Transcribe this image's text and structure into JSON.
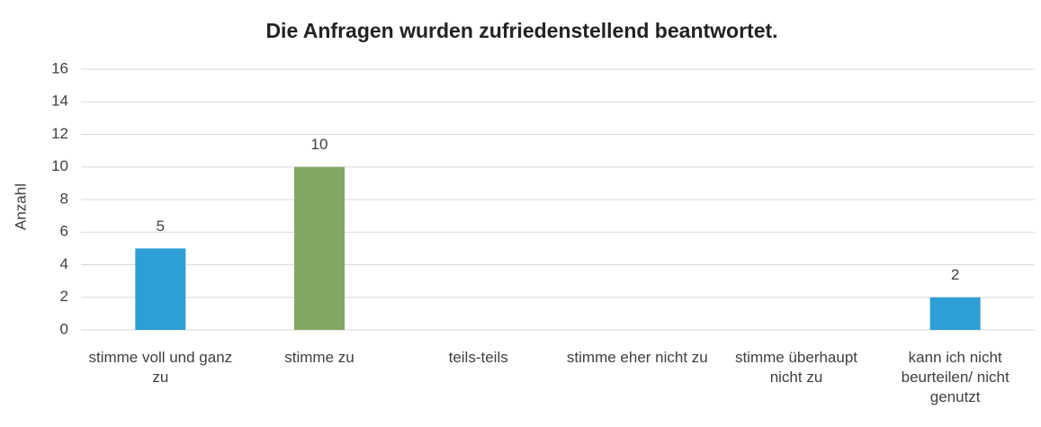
{
  "chart_data": {
    "type": "bar",
    "title": "Die Anfragen wurden zufriedenstellend beantwortet.",
    "y_label": "Anzahl",
    "categories": [
      "stimme voll und ganz zu",
      "stimme zu",
      "teils-teils",
      "stimme eher nicht zu",
      "stimme überhaupt nicht zu",
      "kann ich nicht beurteilen/ nicht genutzt"
    ],
    "values": [
      5,
      10,
      0,
      0,
      0,
      2
    ],
    "value_labels": [
      "5",
      "10",
      null,
      null,
      null,
      "2"
    ],
    "colors": [
      "#2e9fd6",
      "#84a665",
      "#2e9fd6",
      "#2e9fd6",
      "#2e9fd6",
      "#2e9fd6"
    ],
    "ylim": [
      0,
      16
    ],
    "yticks": [
      0,
      2,
      4,
      6,
      8,
      10,
      12,
      14,
      16
    ],
    "grid": true
  }
}
